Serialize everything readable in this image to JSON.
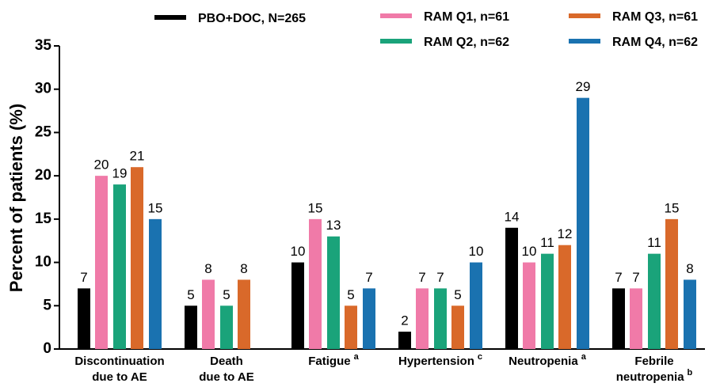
{
  "chart_data": {
    "type": "bar",
    "y_label": "Percent of patients (%)",
    "categories": [
      "Discontinuation due to AE",
      "Death due to AE",
      "Fatigue",
      "Hypertension",
      "Neutropenia",
      "Febrile neutropenia"
    ],
    "category_notes": [
      null,
      null,
      "a",
      "c",
      "a",
      "b"
    ],
    "series": [
      {
        "name": "PBO+DOC, N=265",
        "color": "#000000",
        "values": [
          7,
          5,
          10,
          2,
          14,
          7
        ]
      },
      {
        "name": "RAM Q1, n=61",
        "color": "#f07aa8",
        "values": [
          20,
          8,
          15,
          7,
          10,
          7
        ]
      },
      {
        "name": "RAM Q2, n=62",
        "color": "#1aa37a",
        "values": [
          19,
          5,
          13,
          7,
          11,
          11
        ]
      },
      {
        "name": "RAM Q3, n=61",
        "color": "#d9692a",
        "values": [
          21,
          8,
          5,
          5,
          12,
          15
        ]
      },
      {
        "name": "RAM Q4, n=62",
        "color": "#1a72b0",
        "values": [
          15,
          null,
          7,
          10,
          29,
          8
        ]
      }
    ],
    "ylim": [
      0,
      35
    ],
    "yticks": [
      0,
      5,
      10,
      15,
      20,
      25,
      30,
      35
    ]
  }
}
